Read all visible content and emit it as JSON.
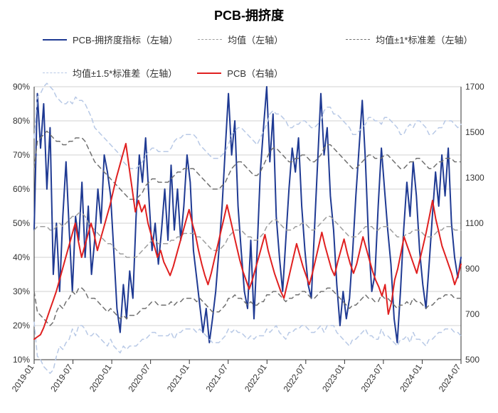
{
  "title": "PCB-拥挤度",
  "title_fontsize": 18,
  "title_weight": "bold",
  "legend": {
    "position": "top-left-inside",
    "fontsize": 13,
    "items": [
      {
        "label": "PCB-拥挤度指标（左轴）",
        "color": "#1f3a93",
        "dash": "solid",
        "width": 2
      },
      {
        "label": "均值（左轴）",
        "color": "#9e9e9e",
        "dash": "dash",
        "width": 1.5
      },
      {
        "label": "均值±1*标准差（左轴）",
        "color": "#707070",
        "dash": "dash",
        "width": 1.5
      },
      {
        "label": "均值±1.5*标准差（左轴）",
        "color": "#b8c9e6",
        "dash": "dash",
        "width": 1.5
      },
      {
        "label": "PCB（右轴）",
        "color": "#e02020",
        "dash": "solid",
        "width": 2
      }
    ]
  },
  "chart": {
    "type": "line-dual-axis",
    "background_color": "#ffffff",
    "grid_color": "#d0d0d0",
    "axis_color": "#333333",
    "x": {
      "labels": [
        "2019-01",
        "2019-07",
        "2020-01",
        "2020-07",
        "2021-01",
        "2021-07",
        "2022-01",
        "2022-07",
        "2023-01",
        "2023-07",
        "2024-01",
        "2024-07"
      ],
      "rotation": -55,
      "fontsize": 12
    },
    "y_left": {
      "min": 10,
      "max": 90,
      "step": 10,
      "suffix": "%",
      "fontsize": 12
    },
    "y_right": {
      "min": 500,
      "max": 1700,
      "step": 200,
      "fontsize": 12
    },
    "series": [
      {
        "name": "PCB-拥挤度指标",
        "axis": "left",
        "color": "#1f3a93",
        "dash": "solid",
        "width": 2,
        "data": [
          48,
          88,
          72,
          85,
          60,
          78,
          35,
          50,
          30,
          52,
          68,
          48,
          30,
          52,
          45,
          62,
          40,
          55,
          35,
          45,
          60,
          50,
          70,
          65,
          58,
          42,
          25,
          18,
          32,
          22,
          36,
          28,
          52,
          70,
          62,
          75,
          58,
          42,
          50,
          38,
          48,
          60,
          45,
          67,
          48,
          60,
          45,
          55,
          70,
          62,
          42,
          34,
          26,
          18,
          25,
          15,
          22,
          30,
          42,
          55,
          72,
          88,
          70,
          80,
          55,
          42,
          30,
          25,
          45,
          22,
          42,
          65,
          78,
          90,
          68,
          82,
          52,
          40,
          30,
          45,
          60,
          72,
          65,
          75,
          55,
          42,
          32,
          28,
          48,
          68,
          88,
          70,
          78,
          58,
          48,
          32,
          20,
          30,
          22,
          28,
          42,
          58,
          72,
          86,
          68,
          45,
          30,
          35,
          55,
          72,
          60,
          48,
          38,
          22,
          15,
          30,
          48,
          62,
          52,
          68,
          58,
          42,
          32,
          25,
          38,
          52,
          65,
          55,
          70,
          58,
          72,
          50,
          40,
          34,
          40
        ]
      },
      {
        "name": "均值",
        "axis": "left",
        "color": "#9e9e9e",
        "dash": "dash",
        "width": 1.5,
        "data": [
          48,
          49,
          49,
          49,
          49,
          48,
          48,
          49,
          50,
          49,
          50,
          51,
          52,
          52,
          53,
          53,
          52,
          50,
          49,
          48,
          47,
          46,
          45,
          44,
          44,
          43,
          42,
          41,
          41,
          40,
          40,
          40,
          40,
          41,
          42,
          43,
          44,
          45,
          45,
          44,
          44,
          44,
          44,
          45,
          45,
          46,
          46,
          47,
          47,
          47,
          47,
          46,
          46,
          45,
          44,
          43,
          42,
          42,
          42,
          43,
          44,
          46,
          47,
          48,
          48,
          48,
          47,
          46,
          46,
          45,
          45,
          46,
          47,
          49,
          50,
          51,
          51,
          50,
          49,
          48,
          48,
          48,
          49,
          49,
          50,
          50,
          49,
          48,
          48,
          49,
          50,
          51,
          52,
          52,
          51,
          50,
          49,
          48,
          47,
          46,
          46,
          46,
          47,
          48,
          49,
          49,
          49,
          48,
          48,
          49,
          49,
          49,
          48,
          47,
          46,
          46,
          46,
          47,
          47,
          48,
          48,
          48,
          47,
          46,
          46,
          46,
          47,
          48,
          48,
          49,
          49,
          49,
          48,
          48,
          48
        ]
      },
      {
        "name": "均值+1σ",
        "axis": "left",
        "color": "#707070",
        "dash": "dash",
        "width": 1.5,
        "data": [
          66,
          74,
          75,
          76,
          77,
          76,
          75,
          74,
          74,
          73,
          73,
          74,
          74,
          75,
          75,
          75,
          74,
          72,
          70,
          68,
          67,
          66,
          65,
          64,
          63,
          62,
          61,
          60,
          59,
          58,
          57,
          57,
          57,
          58,
          59,
          61,
          62,
          63,
          63,
          62,
          62,
          62,
          62,
          63,
          64,
          65,
          65,
          66,
          66,
          66,
          66,
          65,
          64,
          63,
          62,
          61,
          60,
          60,
          60,
          61,
          62,
          64,
          66,
          67,
          68,
          68,
          67,
          66,
          65,
          64,
          64,
          65,
          67,
          69,
          71,
          72,
          72,
          71,
          70,
          69,
          68,
          68,
          69,
          69,
          70,
          70,
          69,
          68,
          68,
          69,
          70,
          72,
          73,
          73,
          72,
          71,
          70,
          69,
          68,
          67,
          66,
          66,
          67,
          68,
          69,
          70,
          70,
          69,
          69,
          69,
          70,
          70,
          69,
          68,
          67,
          66,
          66,
          67,
          68,
          68,
          69,
          69,
          68,
          67,
          66,
          66,
          67,
          68,
          68,
          69,
          69,
          69,
          68,
          68,
          68
        ]
      },
      {
        "name": "均值-1σ",
        "axis": "left",
        "color": "#707070",
        "dash": "dash",
        "width": 1.5,
        "data": [
          30,
          24,
          23,
          22,
          21,
          20,
          21,
          24,
          26,
          25,
          27,
          28,
          30,
          29,
          31,
          31,
          30,
          28,
          28,
          28,
          27,
          26,
          25,
          24,
          25,
          24,
          23,
          22,
          23,
          22,
          23,
          23,
          23,
          24,
          25,
          25,
          26,
          27,
          27,
          26,
          26,
          26,
          26,
          27,
          26,
          27,
          27,
          28,
          28,
          28,
          28,
          27,
          28,
          27,
          26,
          25,
          24,
          24,
          24,
          25,
          26,
          28,
          28,
          29,
          28,
          28,
          27,
          26,
          27,
          26,
          26,
          27,
          27,
          29,
          29,
          30,
          30,
          29,
          28,
          27,
          28,
          28,
          29,
          29,
          30,
          30,
          29,
          28,
          28,
          29,
          30,
          30,
          31,
          31,
          30,
          29,
          28,
          27,
          26,
          25,
          26,
          26,
          27,
          28,
          29,
          28,
          28,
          27,
          27,
          29,
          28,
          28,
          27,
          26,
          25,
          26,
          26,
          27,
          26,
          28,
          27,
          27,
          26,
          25,
          26,
          26,
          27,
          28,
          28,
          29,
          29,
          29,
          28,
          28,
          28
        ]
      },
      {
        "name": "均值+1.5σ",
        "axis": "left",
        "color": "#b8c9e6",
        "dash": "dash",
        "width": 1.5,
        "data": [
          75,
          87,
          88,
          90,
          91,
          90,
          89,
          87,
          86,
          85,
          85,
          86,
          85,
          87,
          86,
          86,
          85,
          83,
          81,
          78,
          77,
          76,
          75,
          74,
          73,
          72,
          71,
          70,
          68,
          67,
          66,
          66,
          66,
          67,
          68,
          70,
          71,
          72,
          72,
          71,
          71,
          71,
          71,
          72,
          74,
          75,
          75,
          76,
          76,
          76,
          76,
          75,
          73,
          72,
          71,
          70,
          69,
          69,
          69,
          70,
          71,
          73,
          76,
          77,
          78,
          78,
          77,
          76,
          75,
          74,
          73,
          75,
          77,
          79,
          82,
          83,
          82,
          82,
          81,
          80,
          78,
          78,
          79,
          79,
          80,
          80,
          79,
          78,
          78,
          79,
          80,
          83,
          84,
          84,
          82,
          82,
          81,
          80,
          79,
          78,
          76,
          76,
          77,
          78,
          79,
          81,
          81,
          80,
          80,
          79,
          81,
          81,
          80,
          79,
          78,
          76,
          76,
          78,
          79,
          78,
          80,
          80,
          79,
          78,
          76,
          76,
          77,
          78,
          78,
          80,
          80,
          80,
          79,
          78,
          79
        ]
      },
      {
        "name": "均值-1.5σ",
        "axis": "left",
        "color": "#b8c9e6",
        "dash": "dash",
        "width": 1.5,
        "data": [
          21,
          11,
          10,
          8,
          7,
          6,
          7,
          11,
          14,
          13,
          15,
          16,
          19,
          17,
          20,
          20,
          19,
          17,
          17,
          18,
          17,
          16,
          15,
          14,
          16,
          14,
          13,
          12,
          14,
          13,
          14,
          14,
          14,
          15,
          16,
          16,
          17,
          18,
          18,
          17,
          17,
          17,
          17,
          18,
          16,
          18,
          18,
          19,
          19,
          19,
          19,
          18,
          19,
          18,
          17,
          16,
          15,
          15,
          15,
          16,
          17,
          19,
          18,
          19,
          18,
          18,
          17,
          16,
          17,
          16,
          17,
          17,
          17,
          19,
          18,
          19,
          20,
          18,
          17,
          16,
          18,
          18,
          19,
          19,
          20,
          20,
          19,
          18,
          18,
          19,
          20,
          18,
          20,
          20,
          20,
          18,
          17,
          16,
          15,
          14,
          16,
          16,
          17,
          18,
          19,
          17,
          17,
          16,
          16,
          19,
          17,
          17,
          16,
          15,
          14,
          16,
          16,
          17,
          15,
          18,
          16,
          16,
          15,
          14,
          16,
          16,
          17,
          18,
          18,
          19,
          19,
          19,
          18,
          18,
          17
        ]
      },
      {
        "name": "PCB",
        "axis": "right",
        "color": "#e02020",
        "dash": "solid",
        "width": 2,
        "data": [
          590,
          600,
          610,
          640,
          680,
          720,
          760,
          800,
          850,
          900,
          950,
          1000,
          1050,
          1100,
          1020,
          950,
          1000,
          1050,
          1100,
          1050,
          980,
          1030,
          1080,
          1130,
          1180,
          1240,
          1300,
          1350,
          1400,
          1450,
          1350,
          1250,
          1150,
          1200,
          1150,
          1180,
          1100,
          1050,
          1000,
          950,
          980,
          930,
          900,
          870,
          910,
          960,
          1010,
          1060,
          1110,
          1160,
          1100,
          1050,
          980,
          920,
          870,
          830,
          880,
          940,
          1000,
          1060,
          1120,
          1180,
          1120,
          1060,
          1000,
          940,
          890,
          850,
          810,
          850,
          900,
          950,
          1000,
          1050,
          980,
          930,
          880,
          840,
          800,
          770,
          830,
          890,
          950,
          1010,
          960,
          910,
          870,
          830,
          880,
          940,
          1000,
          1060,
          1000,
          950,
          900,
          870,
          930,
          980,
          1030,
          970,
          920,
          880,
          920,
          980,
          1040,
          990,
          940,
          890,
          850,
          820,
          780,
          830,
          700,
          750,
          850,
          900,
          970,
          1040,
          1000,
          960,
          920,
          880,
          940,
          1000,
          1060,
          1130,
          1200,
          1120,
          1060,
          1000,
          960,
          920,
          880,
          830,
          870,
          920
        ]
      }
    ]
  }
}
